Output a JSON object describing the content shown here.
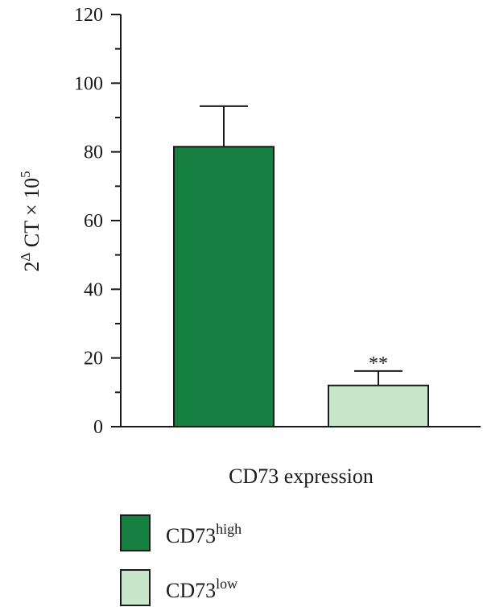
{
  "chart_data": {
    "type": "bar",
    "categories": [
      "CD73high",
      "CD73low"
    ],
    "series": [
      {
        "values": [
          81.5,
          12.0
        ],
        "errors": [
          11.8,
          4.2
        ],
        "colors": [
          "#168040",
          "#c8e6cc"
        ]
      }
    ],
    "ylim": [
      0,
      120
    ],
    "yticks": [
      0,
      20,
      40,
      60,
      80,
      100,
      120
    ],
    "ylabel": {
      "base": "2",
      "sup1": "Δ",
      "mid": " CT × 10",
      "sup2": "5"
    },
    "xlabel": "CD73 expression",
    "annotations": [
      {
        "category_index": 1,
        "text": "**"
      }
    ],
    "legend": {
      "position": "bottom-left",
      "entries": [
        {
          "base": "CD73",
          "sup": "high",
          "color": "#168040"
        },
        {
          "base": "CD73",
          "sup": "low",
          "color": "#c8e6cc"
        }
      ]
    },
    "grid": false
  }
}
